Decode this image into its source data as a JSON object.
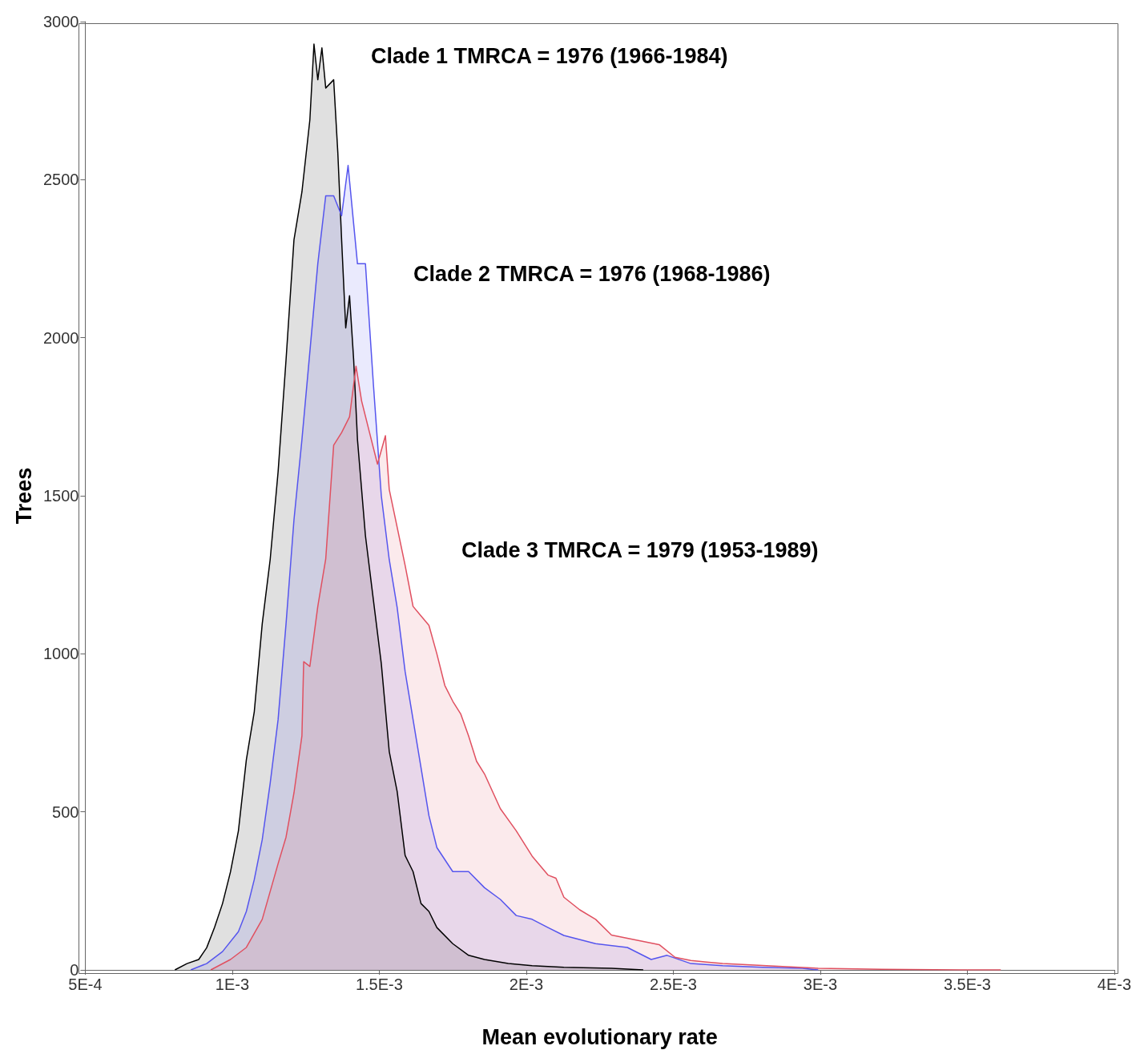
{
  "chart_data": {
    "type": "area",
    "xlabel": "Mean evolutionary rate",
    "ylabel": "Trees",
    "xlim": [
      0.0005,
      0.004
    ],
    "xticks": [
      {
        "value": 0.0005,
        "label": "5E-4"
      },
      {
        "value": 0.001,
        "label": "1E-3"
      },
      {
        "value": 0.0015,
        "label": "1.5E-3"
      },
      {
        "value": 0.002,
        "label": "2E-3"
      },
      {
        "value": 0.0025,
        "label": "2.5E-3"
      },
      {
        "value": 0.003,
        "label": "3E-3"
      },
      {
        "value": 0.0035,
        "label": "3.5E-3"
      },
      {
        "value": 0.004,
        "label": "4E-3"
      }
    ],
    "ylim": [
      0,
      3000
    ],
    "yticks": [
      0,
      500,
      1000,
      1500,
      2000,
      2500,
      3000
    ],
    "grid": false,
    "marker": "none",
    "line_style": "solid",
    "annotations": [
      "Clade 1 TMRCA = 1976 (1966-1984)",
      "Clade 2 TMRCA = 1976 (1968-1986)",
      "Clade 3 TMRCA = 1979 (1953-1989)"
    ],
    "series": [
      {
        "color": "#000000",
        "x": [
          0.000805,
          0.000846,
          0.000886,
          0.000913,
          0.00094,
          0.000967,
          0.000994,
          0.001021,
          0.001048,
          0.001075,
          0.001102,
          0.001129,
          0.001156,
          0.001183,
          0.00121,
          0.001237,
          0.001264,
          0.001278,
          0.001291,
          0.001305,
          0.001318,
          0.001345,
          0.001359,
          0.001372,
          0.001386,
          0.001399,
          0.001413,
          0.001426,
          0.001453,
          0.00148,
          0.001507,
          0.001534,
          0.001561,
          0.001588,
          0.001615,
          0.001642,
          0.001669,
          0.001696,
          0.00175,
          0.001804,
          0.001858,
          0.001939,
          0.00202,
          0.002128,
          0.00229,
          0.002398
        ],
        "values": [
          0,
          20,
          33,
          70,
          135,
          210,
          310,
          440,
          665,
          817,
          1095,
          1298,
          1576,
          1930,
          2310,
          2461,
          2689,
          2929,
          2816,
          2917,
          2790,
          2816,
          2588,
          2310,
          2031,
          2133,
          1930,
          1677,
          1374,
          1171,
          969,
          691,
          564,
          362,
          311,
          210,
          185,
          134,
          83,
          46,
          33,
          20,
          13,
          8,
          5,
          0
        ]
      },
      {
        "color": "#5555ee",
        "x": [
          0.000859,
          0.000913,
          0.000967,
          0.001021,
          0.001048,
          0.001075,
          0.001102,
          0.001129,
          0.001156,
          0.001183,
          0.00121,
          0.001237,
          0.001264,
          0.001291,
          0.001318,
          0.001345,
          0.001372,
          0.001394,
          0.001413,
          0.001426,
          0.001453,
          0.00148,
          0.001507,
          0.001534,
          0.001561,
          0.001588,
          0.001615,
          0.001642,
          0.001669,
          0.001696,
          0.00175,
          0.001804,
          0.001858,
          0.001912,
          0.001966,
          0.00202,
          0.002074,
          0.002128,
          0.002236,
          0.002344,
          0.002425,
          0.002479,
          0.00256,
          0.002668,
          0.002804,
          0.002939,
          0.002993
        ],
        "values": [
          0,
          20,
          58,
          121,
          185,
          286,
          412,
          590,
          792,
          1095,
          1424,
          1677,
          1955,
          2234,
          2449,
          2449,
          2386,
          2545,
          2360,
          2234,
          2234,
          1854,
          1500,
          1298,
          1146,
          944,
          792,
          640,
          488,
          387,
          311,
          311,
          260,
          223,
          172,
          160,
          134,
          109,
          83,
          71,
          33,
          46,
          20,
          13,
          8,
          5,
          0
        ]
      },
      {
        "color": "#e05060",
        "x": [
          0.000927,
          0.000994,
          0.001048,
          0.001102,
          0.001156,
          0.001183,
          0.00121,
          0.001237,
          0.001243,
          0.001264,
          0.001291,
          0.001318,
          0.001345,
          0.001372,
          0.001399,
          0.001421,
          0.00144,
          0.001467,
          0.001494,
          0.001521,
          0.001534,
          0.001561,
          0.001588,
          0.001615,
          0.001642,
          0.001669,
          0.001696,
          0.001723,
          0.00175,
          0.001777,
          0.001804,
          0.001831,
          0.001858,
          0.001912,
          0.001966,
          0.00202,
          0.002074,
          0.002101,
          0.002128,
          0.002182,
          0.002236,
          0.00229,
          0.002344,
          0.002398,
          0.002452,
          0.002506,
          0.00256,
          0.002614,
          0.002668,
          0.002777,
          0.002885,
          0.002993,
          0.003209,
          0.003479,
          0.003614
        ],
        "values": [
          0,
          33,
          71,
          160,
          336,
          420,
          560,
          740,
          975,
          960,
          1150,
          1300,
          1660,
          1700,
          1750,
          1910,
          1800,
          1700,
          1600,
          1690,
          1520,
          1400,
          1280,
          1150,
          1120,
          1090,
          1000,
          900,
          850,
          810,
          740,
          660,
          620,
          510,
          440,
          360,
          300,
          290,
          230,
          190,
          160,
          110,
          100,
          90,
          80,
          40,
          30,
          25,
          20,
          15,
          10,
          5,
          2,
          0,
          0
        ]
      }
    ]
  }
}
